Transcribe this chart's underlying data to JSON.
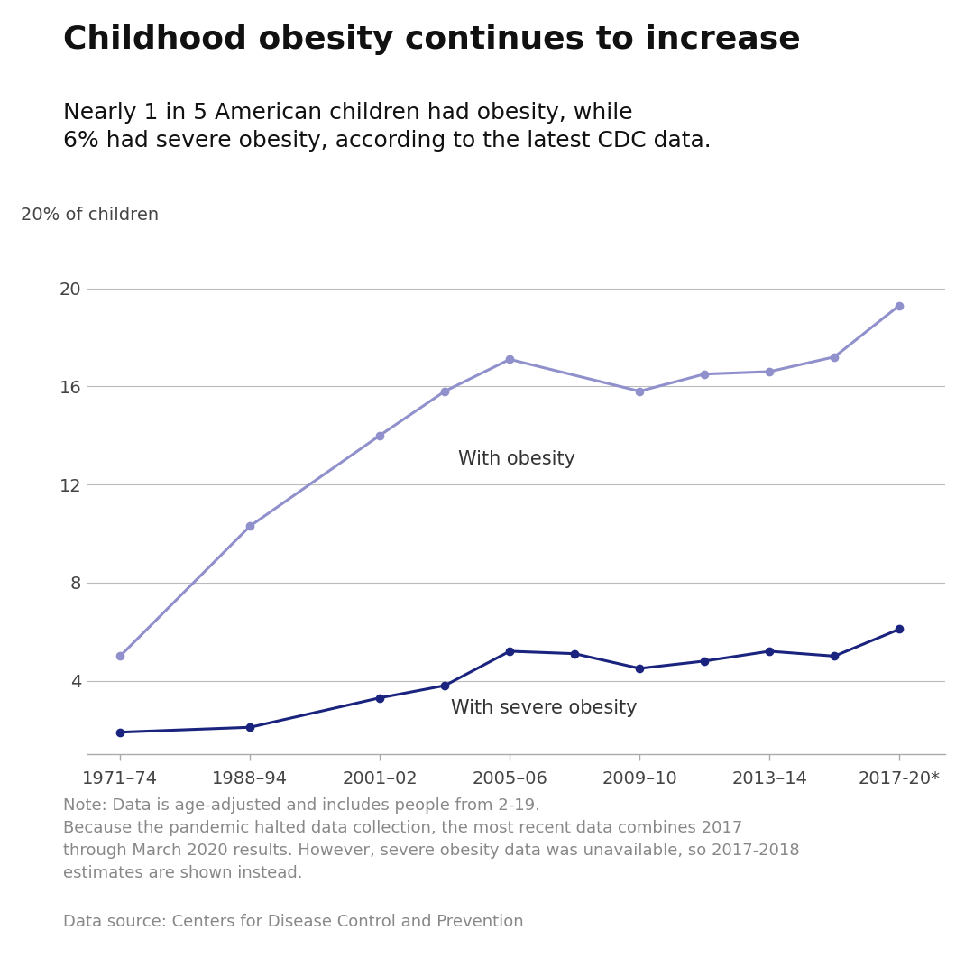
{
  "title": "Childhood obesity continues to increase",
  "subtitle": "Nearly 1 in 5 American children had obesity, while\n6% had severe obesity, according to the latest CDC data.",
  "ylabel": "20% of children",
  "x_labels": [
    "1971–74",
    "1988–94",
    "2001–02",
    "2005–06",
    "2009–10",
    "2013–14",
    "2017-20*"
  ],
  "obesity_x": [
    0,
    1,
    2.0,
    2.5,
    3.0,
    4.0,
    4.5,
    5.0,
    5.5,
    6.0
  ],
  "obesity_y": [
    5.0,
    10.3,
    14.0,
    15.8,
    17.1,
    15.8,
    16.5,
    16.6,
    17.2,
    19.3
  ],
  "severe_x": [
    0,
    1,
    2.0,
    2.5,
    3.0,
    3.5,
    4.0,
    4.5,
    5.0,
    5.5,
    6.0
  ],
  "severe_y": [
    1.9,
    2.1,
    3.3,
    3.8,
    5.2,
    5.1,
    4.5,
    4.8,
    5.2,
    5.0,
    6.1
  ],
  "obesity_color": "#9090cc",
  "severe_color": "#1a237e",
  "note_text": "Note: Data is age-adjusted and includes people from 2-19.\nBecause the pandemic halted data collection, the most recent data combines 2017\nthrough March 2020 results. However, severe obesity data was unavailable, so 2017-2018\nestimates are shown instead.",
  "source_text": "Data source: Centers for Disease Control and Prevention",
  "background_color": "#ffffff",
  "grid_color": "#bbbbbb",
  "yticks": [
    4,
    8,
    12,
    16,
    20
  ],
  "ylim": [
    1.0,
    21.5
  ],
  "xlim": [
    -0.25,
    6.35
  ],
  "title_fontsize": 26,
  "subtitle_fontsize": 18,
  "label_fontsize": 14,
  "tick_fontsize": 14,
  "note_fontsize": 13,
  "obesity_label": "With obesity",
  "severe_label": "With severe obesity"
}
